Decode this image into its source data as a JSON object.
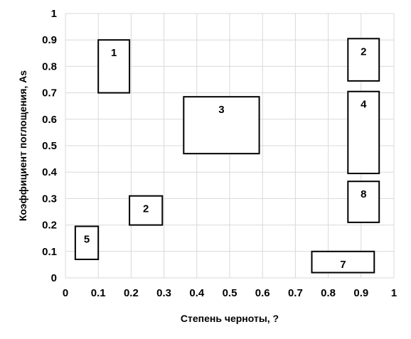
{
  "chart_data": {
    "type": "scatter",
    "title": "",
    "xlabel": "Степень черноты, ?",
    "ylabel": "Коэффициент поглощения, As",
    "xlim": [
      0,
      1
    ],
    "ylim": [
      0,
      1
    ],
    "x_ticks": [
      "0",
      "0.1",
      "0.2",
      "0.3",
      "0.4",
      "0.5",
      "0.6",
      "0.7",
      "0.8",
      "0.9",
      "1"
    ],
    "y_ticks": [
      "0",
      "0.1",
      "0.2",
      "0.3",
      "0.4",
      "0.5",
      "0.6",
      "0.7",
      "0.8",
      "0.9",
      "1"
    ],
    "grid": true,
    "regions": [
      {
        "label": "1",
        "x_range": [
          0.1,
          0.195
        ],
        "y_range": [
          0.7,
          0.9
        ]
      },
      {
        "label": "2",
        "x_range": [
          0.86,
          0.955
        ],
        "y_range": [
          0.745,
          0.905
        ]
      },
      {
        "label": "3",
        "x_range": [
          0.36,
          0.59
        ],
        "y_range": [
          0.47,
          0.685
        ]
      },
      {
        "label": "4",
        "x_range": [
          0.86,
          0.955
        ],
        "y_range": [
          0.395,
          0.705
        ]
      },
      {
        "label": "8",
        "x_range": [
          0.86,
          0.955
        ],
        "y_range": [
          0.21,
          0.365
        ]
      },
      {
        "label": "2",
        "x_range": [
          0.195,
          0.295
        ],
        "y_range": [
          0.2,
          0.31
        ]
      },
      {
        "label": "5",
        "x_range": [
          0.03,
          0.1
        ],
        "y_range": [
          0.07,
          0.195
        ]
      },
      {
        "label": "7",
        "x_range": [
          0.75,
          0.94
        ],
        "y_range": [
          0.02,
          0.1
        ]
      }
    ]
  }
}
